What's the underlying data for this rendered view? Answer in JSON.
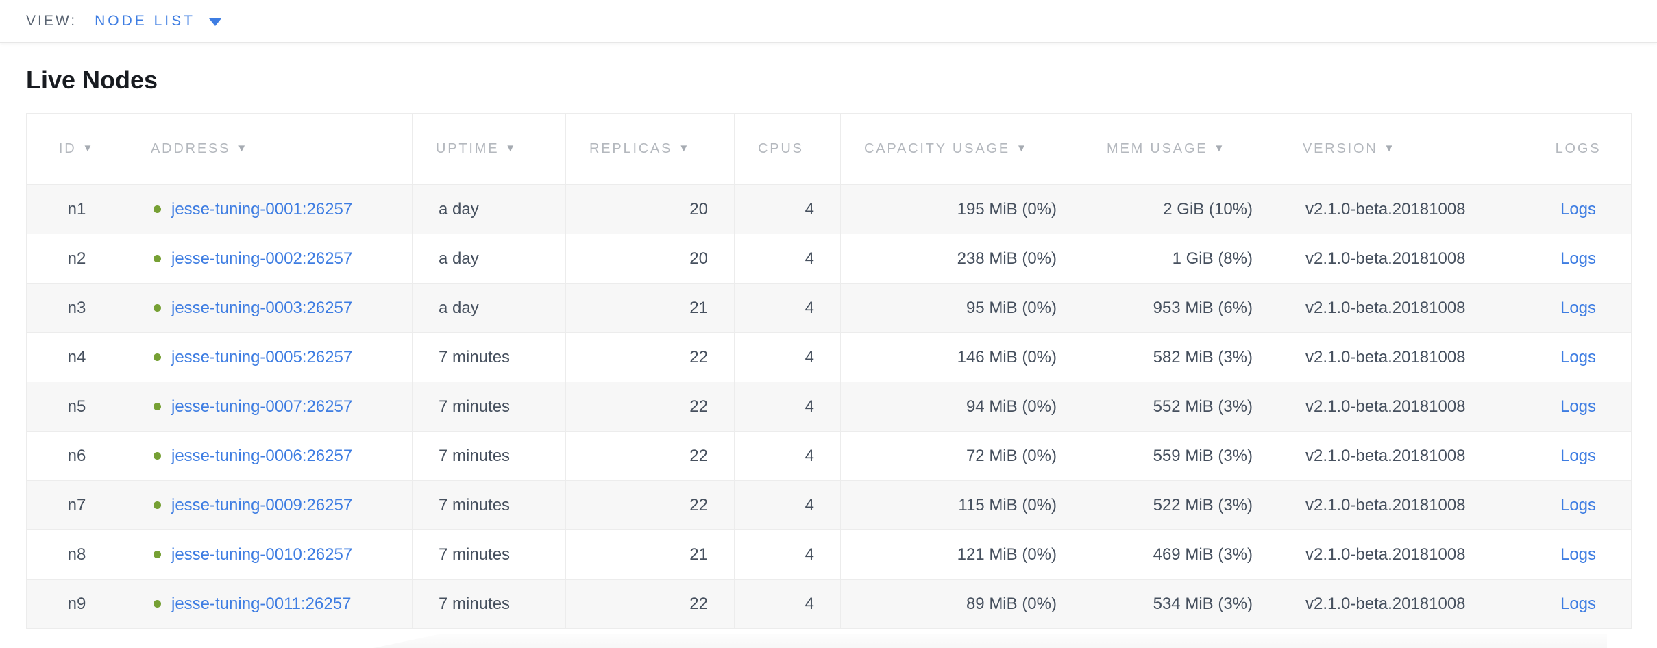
{
  "view_bar": {
    "label": "VIEW:",
    "selected": "NODE LIST"
  },
  "page": {
    "title": "Live Nodes"
  },
  "table": {
    "columns": [
      {
        "key": "id",
        "label": "ID",
        "sortable": true
      },
      {
        "key": "address",
        "label": "ADDRESS",
        "sortable": true
      },
      {
        "key": "uptime",
        "label": "UPTIME",
        "sortable": true
      },
      {
        "key": "replicas",
        "label": "REPLICAS",
        "sortable": true
      },
      {
        "key": "cpus",
        "label": "CPUS",
        "sortable": false
      },
      {
        "key": "capacity",
        "label": "CAPACITY USAGE",
        "sortable": true
      },
      {
        "key": "mem",
        "label": "MEM USAGE",
        "sortable": true
      },
      {
        "key": "version",
        "label": "VERSION",
        "sortable": true
      },
      {
        "key": "logs",
        "label": "LOGS",
        "sortable": false
      }
    ],
    "sort_arrow_glyph": "▼",
    "rows": [
      {
        "id": "n1",
        "status": "live",
        "address": "jesse-tuning-0001:26257",
        "uptime": "a day",
        "replicas": "20",
        "cpus": "4",
        "capacity": "195 MiB (0%)",
        "mem": "2 GiB (10%)",
        "version": "v2.1.0-beta.20181008",
        "logs": "Logs"
      },
      {
        "id": "n2",
        "status": "live",
        "address": "jesse-tuning-0002:26257",
        "uptime": "a day",
        "replicas": "20",
        "cpus": "4",
        "capacity": "238 MiB (0%)",
        "mem": "1 GiB (8%)",
        "version": "v2.1.0-beta.20181008",
        "logs": "Logs"
      },
      {
        "id": "n3",
        "status": "live",
        "address": "jesse-tuning-0003:26257",
        "uptime": "a day",
        "replicas": "21",
        "cpus": "4",
        "capacity": "95 MiB (0%)",
        "mem": "953 MiB (6%)",
        "version": "v2.1.0-beta.20181008",
        "logs": "Logs"
      },
      {
        "id": "n4",
        "status": "live",
        "address": "jesse-tuning-0005:26257",
        "uptime": "7 minutes",
        "replicas": "22",
        "cpus": "4",
        "capacity": "146 MiB (0%)",
        "mem": "582 MiB (3%)",
        "version": "v2.1.0-beta.20181008",
        "logs": "Logs"
      },
      {
        "id": "n5",
        "status": "live",
        "address": "jesse-tuning-0007:26257",
        "uptime": "7 minutes",
        "replicas": "22",
        "cpus": "4",
        "capacity": "94 MiB (0%)",
        "mem": "552 MiB (3%)",
        "version": "v2.1.0-beta.20181008",
        "logs": "Logs"
      },
      {
        "id": "n6",
        "status": "live",
        "address": "jesse-tuning-0006:26257",
        "uptime": "7 minutes",
        "replicas": "22",
        "cpus": "4",
        "capacity": "72 MiB (0%)",
        "mem": "559 MiB (3%)",
        "version": "v2.1.0-beta.20181008",
        "logs": "Logs"
      },
      {
        "id": "n7",
        "status": "live",
        "address": "jesse-tuning-0009:26257",
        "uptime": "7 minutes",
        "replicas": "22",
        "cpus": "4",
        "capacity": "115 MiB (0%)",
        "mem": "522 MiB (3%)",
        "version": "v2.1.0-beta.20181008",
        "logs": "Logs"
      },
      {
        "id": "n8",
        "status": "live",
        "address": "jesse-tuning-0010:26257",
        "uptime": "7 minutes",
        "replicas": "21",
        "cpus": "4",
        "capacity": "121 MiB (0%)",
        "mem": "469 MiB (3%)",
        "version": "v2.1.0-beta.20181008",
        "logs": "Logs"
      },
      {
        "id": "n9",
        "status": "live",
        "address": "jesse-tuning-0011:26257",
        "uptime": "7 minutes",
        "replicas": "22",
        "cpus": "4",
        "capacity": "89 MiB (0%)",
        "mem": "534 MiB (3%)",
        "version": "v2.1.0-beta.20181008",
        "logs": "Logs"
      }
    ]
  },
  "colors": {
    "link_blue": "#3e7de2",
    "live_dot_green": "#76a034",
    "header_text": "#b4b8be",
    "cell_text": "#46505e",
    "heading_text": "#181b20",
    "view_label_text": "#5a6472",
    "row_stripe": "#f7f7f7",
    "table_border": "#e4e4e4"
  }
}
